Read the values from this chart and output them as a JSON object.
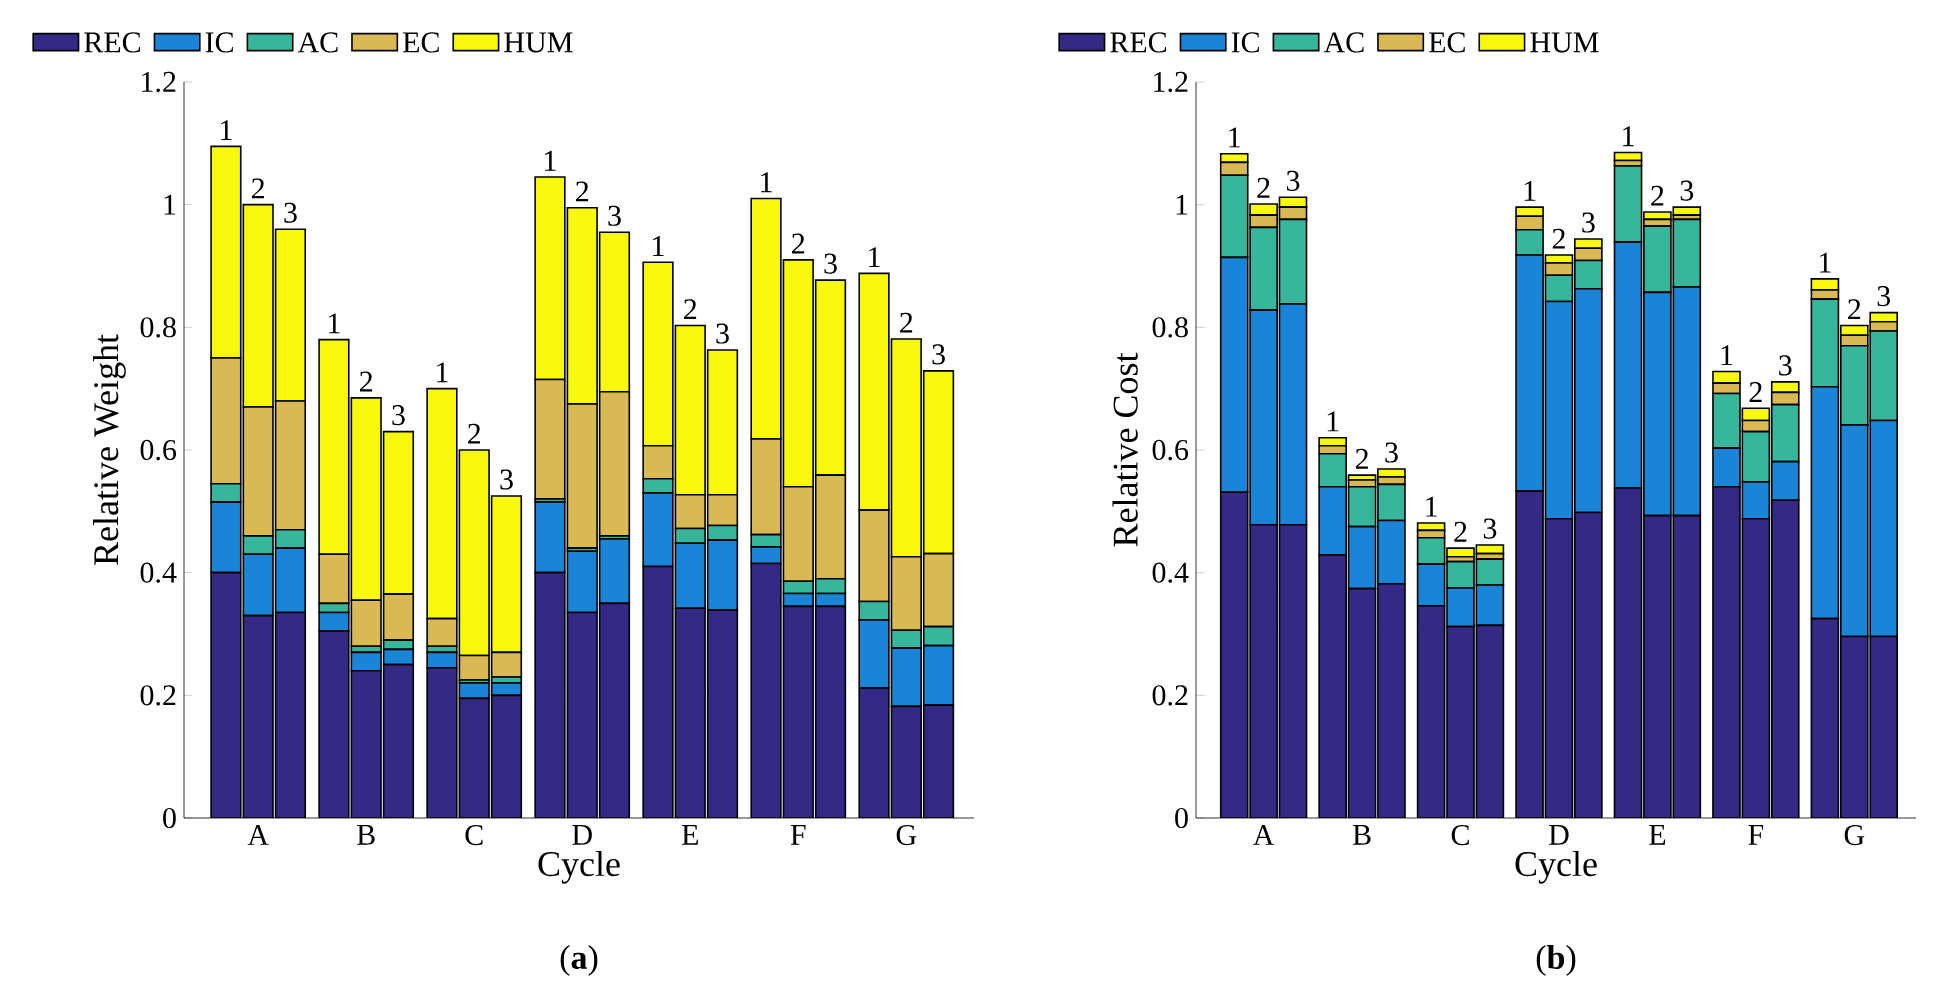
{
  "chart_data": [
    {
      "type": "bar",
      "stacked": true,
      "title": "(**a**)",
      "xlabel": "Cycle",
      "ylabel": "Relative Weight",
      "legend": "top",
      "categories": [
        null,
        "A",
        null,
        null,
        "B",
        null,
        null,
        "C",
        null,
        null,
        "D",
        null,
        null,
        "E",
        null,
        null,
        "F",
        null,
        null,
        "G",
        null
      ],
      "ylim": [
        0,
        1.2
      ],
      "yticks": [
        0,
        0.2,
        0.4,
        0.6,
        0.8,
        1,
        1.2
      ],
      "series": [
        {
          "name": "REC",
          "color": "#342a85",
          "values": [
            0.4,
            0.33,
            0.335,
            0.305,
            0.24,
            0.25,
            0.245,
            0.195,
            0.2,
            0.4,
            0.335,
            0.35,
            0.41,
            0.342,
            0.339,
            0.415,
            0.345,
            0.345,
            0.212,
            0.182,
            0.184
          ]
        },
        {
          "name": "IC",
          "color": "#1a85d6",
          "values": [
            0.115,
            0.1,
            0.105,
            0.03,
            0.03,
            0.025,
            0.025,
            0.025,
            0.02,
            0.115,
            0.1,
            0.105,
            0.12,
            0.106,
            0.114,
            0.027,
            0.021,
            0.021,
            0.111,
            0.095,
            0.097
          ]
        },
        {
          "name": "AC",
          "color": "#38b69b",
          "values": [
            0.03,
            0.03,
            0.03,
            0.015,
            0.01,
            0.015,
            0.01,
            0.005,
            0.01,
            0.005,
            0.005,
            0.005,
            0.023,
            0.024,
            0.024,
            0.02,
            0.02,
            0.024,
            0.03,
            0.029,
            0.031
          ]
        },
        {
          "name": "EC",
          "color": "#d8b954",
          "values": [
            0.205,
            0.21,
            0.21,
            0.08,
            0.075,
            0.075,
            0.045,
            0.04,
            0.04,
            0.195,
            0.235,
            0.235,
            0.054,
            0.055,
            0.05,
            0.156,
            0.154,
            0.169,
            0.149,
            0.12,
            0.119
          ]
        },
        {
          "name": "HUM",
          "color": "#f8f80f",
          "values": [
            0.345,
            0.33,
            0.28,
            0.35,
            0.33,
            0.265,
            0.375,
            0.335,
            0.255,
            0.33,
            0.32,
            0.26,
            0.299,
            0.276,
            0.236,
            0.392,
            0.37,
            0.318,
            0.386,
            0.355,
            0.298
          ]
        }
      ],
      "annotations": [
        {
          "text": "1",
          "y": 1.095
        },
        {
          "text": "2",
          "y": 1.0
        },
        {
          "text": "3",
          "y": 0.96
        },
        {
          "text": "1",
          "y": 0.78
        },
        {
          "text": "2",
          "y": 0.685
        },
        {
          "text": "3",
          "y": 0.63
        },
        {
          "text": "1",
          "y": 0.7
        },
        {
          "text": "2",
          "y": 0.6
        },
        {
          "text": "3",
          "y": 0.525
        },
        {
          "text": "1",
          "y": 1.045
        },
        {
          "text": "2",
          "y": 0.995
        },
        {
          "text": "3",
          "y": 0.955
        },
        {
          "text": "1",
          "y": 0.906
        },
        {
          "text": "2",
          "y": 0.803
        },
        {
          "text": "3",
          "y": 0.763
        },
        {
          "text": "1",
          "y": 1.01
        },
        {
          "text": "2",
          "y": 0.91
        },
        {
          "text": "3",
          "y": 0.877
        },
        {
          "text": "1",
          "y": 0.888
        },
        {
          "text": "2",
          "y": 0.781
        },
        {
          "text": "3",
          "y": 0.729
        }
      ]
    },
    {
      "type": "bar",
      "stacked": true,
      "title": "(**b**)",
      "xlabel": "Cycle",
      "ylabel": "Relative Cost",
      "legend": "top",
      "categories": [
        null,
        "A",
        null,
        null,
        "B",
        null,
        null,
        "C",
        null,
        null,
        "D",
        null,
        null,
        "E",
        null,
        null,
        "F",
        null,
        null,
        "G",
        null
      ],
      "ylim": [
        0,
        1.2
      ],
      "yticks": [
        0,
        0.2,
        0.4,
        0.6,
        0.8,
        1,
        1.2
      ],
      "series": [
        {
          "name": "REC",
          "color": "#342a85",
          "values": [
            0.531,
            0.478,
            0.478,
            0.429,
            0.374,
            0.382,
            0.346,
            0.312,
            0.314,
            0.533,
            0.488,
            0.498,
            0.538,
            0.493,
            0.493,
            0.54,
            0.488,
            0.518,
            0.325,
            0.296,
            0.296
          ]
        },
        {
          "name": "IC",
          "color": "#1a85d6",
          "values": [
            0.383,
            0.35,
            0.36,
            0.111,
            0.101,
            0.103,
            0.068,
            0.063,
            0.066,
            0.385,
            0.354,
            0.365,
            0.401,
            0.364,
            0.373,
            0.063,
            0.06,
            0.063,
            0.378,
            0.345,
            0.352
          ]
        },
        {
          "name": "AC",
          "color": "#38b69b",
          "values": [
            0.134,
            0.135,
            0.138,
            0.054,
            0.065,
            0.059,
            0.043,
            0.043,
            0.042,
            0.041,
            0.043,
            0.046,
            0.124,
            0.108,
            0.11,
            0.089,
            0.082,
            0.093,
            0.143,
            0.129,
            0.146
          ]
        },
        {
          "name": "EC",
          "color": "#d8b954",
          "values": [
            0.021,
            0.02,
            0.02,
            0.013,
            0.011,
            0.012,
            0.012,
            0.008,
            0.009,
            0.022,
            0.02,
            0.02,
            0.009,
            0.011,
            0.007,
            0.017,
            0.018,
            0.02,
            0.015,
            0.017,
            0.015
          ]
        },
        {
          "name": "HUM",
          "color": "#f8f80f",
          "values": [
            0.014,
            0.018,
            0.016,
            0.013,
            0.008,
            0.013,
            0.012,
            0.014,
            0.014,
            0.015,
            0.013,
            0.015,
            0.013,
            0.012,
            0.013,
            0.019,
            0.02,
            0.017,
            0.018,
            0.016,
            0.015
          ]
        }
      ],
      "annotations": [
        {
          "text": "1",
          "y": 1.083
        },
        {
          "text": "2",
          "y": 1.001
        },
        {
          "text": "3",
          "y": 1.012
        },
        {
          "text": "1",
          "y": 0.62
        },
        {
          "text": "2",
          "y": 0.559
        },
        {
          "text": "3",
          "y": 0.569
        },
        {
          "text": "1",
          "y": 0.481
        },
        {
          "text": "2",
          "y": 0.44
        },
        {
          "text": "3",
          "y": 0.445
        },
        {
          "text": "1",
          "y": 0.996
        },
        {
          "text": "2",
          "y": 0.918
        },
        {
          "text": "3",
          "y": 0.944
        },
        {
          "text": "1",
          "y": 1.085
        },
        {
          "text": "2",
          "y": 0.988
        },
        {
          "text": "3",
          "y": 0.996
        },
        {
          "text": "1",
          "y": 0.728
        },
        {
          "text": "2",
          "y": 0.668
        },
        {
          "text": "3",
          "y": 0.711
        },
        {
          "text": "1",
          "y": 0.879
        },
        {
          "text": "2",
          "y": 0.803
        },
        {
          "text": "3",
          "y": 0.824
        }
      ]
    }
  ]
}
